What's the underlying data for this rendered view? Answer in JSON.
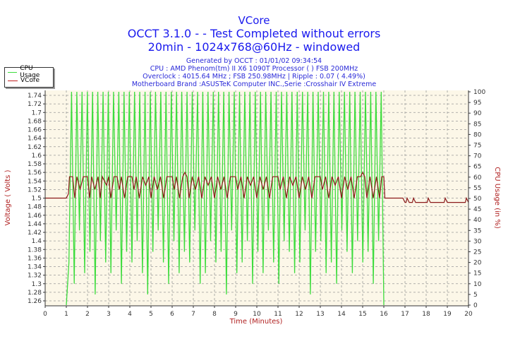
{
  "chart_data": {
    "type": "line",
    "title": "VCore",
    "subtitle_lines": [
      "OCCT 3.1.0 -  - Test Completed without errors",
      "20min - 1024x768@60Hz - windowed"
    ],
    "info_lines": [
      "Generated by OCCT : 01/01/02 09:34:54",
      "CPU : AMD Phenom(tm) II X6 1090T Processor (  ) FSB 200MHz",
      "Overclock : 4015.64 MHz ; FSB 250.98MHz | Ripple : 0.07 ( 4.49%)",
      "Motherboard Brand :ASUSTeK Computer INC.,Serie :Crosshair IV Extreme"
    ],
    "xlabel": "Time (Minutes)",
    "ylabel_left": "Voltage ( Volts )",
    "ylabel_right": "CPU Usage (in %)",
    "xlim": [
      0,
      20
    ],
    "ylim_left": [
      1.26,
      1.74
    ],
    "ylim_right": [
      0,
      100
    ],
    "x_ticks": [
      "0",
      "1",
      "2",
      "3",
      "4",
      "5",
      "6",
      "7",
      "8",
      "9",
      "10",
      "11",
      "12",
      "13",
      "14",
      "15",
      "16",
      "17",
      "18",
      "19",
      "20"
    ],
    "y_left_ticks": [
      "1.26",
      "1.28",
      "1.3",
      "1.32",
      "1.34",
      "1.36",
      "1.38",
      "1.4",
      "1.42",
      "1.44",
      "1.46",
      "1.48",
      "1.5",
      "1.52",
      "1.54",
      "1.56",
      "1.58",
      "1.6",
      "1.62",
      "1.64",
      "1.66",
      "1.68",
      "1.7",
      "1.72",
      "1.74"
    ],
    "y_right_ticks": [
      "0",
      "5",
      "10",
      "15",
      "20",
      "25",
      "30",
      "35",
      "40",
      "45",
      "50",
      "55",
      "60",
      "65",
      "70",
      "75",
      "80",
      "85",
      "90",
      "95",
      "100"
    ],
    "grid": true,
    "legend_position": "top-left",
    "colors": {
      "background": "#fcf7e8",
      "cpu": "#3ddc3d",
      "vcore": "#8b1a1a",
      "title": "#1a1aee",
      "axis_label": "#b02020"
    },
    "series": [
      {
        "name": "CPU Usage",
        "axis": "right",
        "x_range": [
          1,
          16
        ],
        "values": [
          0,
          20,
          100,
          10,
          100,
          35,
          100,
          15,
          100,
          25,
          100,
          5,
          100,
          30,
          100,
          20,
          100,
          15,
          100,
          35,
          100,
          10,
          100,
          25,
          100,
          20,
          100,
          30,
          100,
          15,
          100,
          5,
          100,
          25,
          100,
          35,
          100,
          20,
          100,
          10,
          100,
          30,
          100,
          15,
          100,
          25,
          100,
          20,
          100,
          35,
          100,
          10,
          100,
          15,
          100,
          30,
          100,
          20,
          100,
          25,
          100,
          5,
          100,
          35,
          100,
          15,
          100,
          20,
          100,
          30,
          100,
          10,
          100,
          25,
          100,
          15,
          100,
          35,
          100,
          20,
          100,
          10,
          100,
          30,
          100,
          25,
          100,
          15,
          100,
          20,
          100,
          35,
          100,
          5,
          100,
          25,
          100,
          30,
          100,
          15,
          100,
          20,
          100,
          10,
          100,
          35,
          100,
          25,
          100,
          15,
          100,
          30,
          100,
          20,
          100,
          25,
          100,
          10,
          100,
          30,
          100,
          0
        ]
      },
      {
        "name": "VCore",
        "axis": "left",
        "points": [
          [
            0,
            1.5
          ],
          [
            1,
            1.5
          ],
          [
            1.1,
            1.51
          ],
          [
            1.15,
            1.55
          ],
          [
            1.3,
            1.55
          ],
          [
            1.4,
            1.5
          ],
          [
            1.5,
            1.55
          ],
          [
            1.65,
            1.52
          ],
          [
            1.8,
            1.55
          ],
          [
            2,
            1.55
          ],
          [
            2.1,
            1.5
          ],
          [
            2.2,
            1.55
          ],
          [
            2.35,
            1.52
          ],
          [
            2.5,
            1.55
          ],
          [
            2.6,
            1.5
          ],
          [
            2.7,
            1.55
          ],
          [
            2.9,
            1.53
          ],
          [
            3.0,
            1.55
          ],
          [
            3.1,
            1.5
          ],
          [
            3.25,
            1.55
          ],
          [
            3.4,
            1.55
          ],
          [
            3.5,
            1.52
          ],
          [
            3.6,
            1.55
          ],
          [
            3.75,
            1.5
          ],
          [
            3.9,
            1.55
          ],
          [
            4.1,
            1.55
          ],
          [
            4.2,
            1.52
          ],
          [
            4.3,
            1.55
          ],
          [
            4.45,
            1.5
          ],
          [
            4.6,
            1.55
          ],
          [
            4.75,
            1.53
          ],
          [
            4.9,
            1.55
          ],
          [
            5.0,
            1.5
          ],
          [
            5.15,
            1.55
          ],
          [
            5.3,
            1.52
          ],
          [
            5.45,
            1.55
          ],
          [
            5.6,
            1.5
          ],
          [
            5.75,
            1.55
          ],
          [
            6,
            1.55
          ],
          [
            6.1,
            1.52
          ],
          [
            6.2,
            1.55
          ],
          [
            6.35,
            1.5
          ],
          [
            6.5,
            1.55
          ],
          [
            6.6,
            1.56
          ],
          [
            6.7,
            1.55
          ],
          [
            6.8,
            1.5
          ],
          [
            6.95,
            1.55
          ],
          [
            7.1,
            1.52
          ],
          [
            7.25,
            1.55
          ],
          [
            7.4,
            1.5
          ],
          [
            7.55,
            1.55
          ],
          [
            7.7,
            1.53
          ],
          [
            7.85,
            1.55
          ],
          [
            8,
            1.5
          ],
          [
            8.15,
            1.55
          ],
          [
            8.3,
            1.52
          ],
          [
            8.45,
            1.55
          ],
          [
            8.6,
            1.5
          ],
          [
            8.75,
            1.55
          ],
          [
            9,
            1.55
          ],
          [
            9.1,
            1.52
          ],
          [
            9.25,
            1.55
          ],
          [
            9.4,
            1.5
          ],
          [
            9.55,
            1.55
          ],
          [
            9.7,
            1.53
          ],
          [
            9.85,
            1.55
          ],
          [
            10,
            1.5
          ],
          [
            10.15,
            1.55
          ],
          [
            10.3,
            1.52
          ],
          [
            10.45,
            1.55
          ],
          [
            10.6,
            1.5
          ],
          [
            10.75,
            1.55
          ],
          [
            11,
            1.55
          ],
          [
            11.1,
            1.52
          ],
          [
            11.25,
            1.55
          ],
          [
            11.4,
            1.5
          ],
          [
            11.55,
            1.55
          ],
          [
            11.7,
            1.53
          ],
          [
            11.85,
            1.55
          ],
          [
            12,
            1.5
          ],
          [
            12.15,
            1.55
          ],
          [
            12.3,
            1.52
          ],
          [
            12.45,
            1.55
          ],
          [
            12.6,
            1.5
          ],
          [
            12.75,
            1.55
          ],
          [
            13,
            1.55
          ],
          [
            13.1,
            1.52
          ],
          [
            13.25,
            1.55
          ],
          [
            13.4,
            1.5
          ],
          [
            13.55,
            1.55
          ],
          [
            13.7,
            1.53
          ],
          [
            13.85,
            1.55
          ],
          [
            14,
            1.5
          ],
          [
            14.15,
            1.55
          ],
          [
            14.3,
            1.52
          ],
          [
            14.45,
            1.55
          ],
          [
            14.6,
            1.5
          ],
          [
            14.75,
            1.55
          ],
          [
            14.9,
            1.55
          ],
          [
            15.0,
            1.56
          ],
          [
            15.1,
            1.55
          ],
          [
            15.2,
            1.5
          ],
          [
            15.35,
            1.55
          ],
          [
            15.5,
            1.5
          ],
          [
            15.65,
            1.55
          ],
          [
            15.8,
            1.5
          ],
          [
            15.9,
            1.55
          ],
          [
            16,
            1.55
          ],
          [
            16.05,
            1.5
          ],
          [
            16.9,
            1.5
          ],
          [
            17.0,
            1.49
          ],
          [
            17.05,
            1.49
          ],
          [
            17.1,
            1.5
          ],
          [
            17.2,
            1.49
          ],
          [
            17.35,
            1.49
          ],
          [
            17.4,
            1.5
          ],
          [
            17.5,
            1.49
          ],
          [
            18.05,
            1.49
          ],
          [
            18.1,
            1.5
          ],
          [
            18.2,
            1.49
          ],
          [
            18.85,
            1.49
          ],
          [
            18.9,
            1.5
          ],
          [
            19.0,
            1.49
          ],
          [
            19.85,
            1.49
          ],
          [
            19.9,
            1.5
          ],
          [
            20,
            1.49
          ]
        ]
      }
    ]
  }
}
